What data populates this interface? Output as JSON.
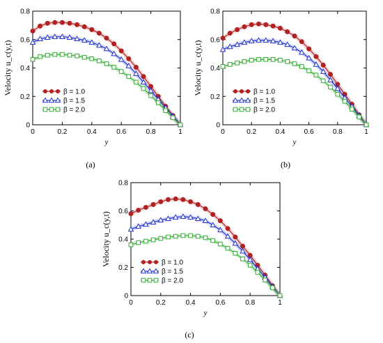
{
  "chart_data": [
    {
      "type": "line",
      "panel_label": "(a)",
      "xlabel": "y",
      "ylabel": "Velocity u_c(y,t)",
      "xlim": [
        0,
        1
      ],
      "ylim": [
        0,
        0.8
      ],
      "x_ticks": [
        "0",
        "0.2",
        "0.4",
        "0.6",
        "0.8",
        "1"
      ],
      "y_ticks": [
        "0",
        "0.2",
        "0.4",
        "0.6",
        "0.8"
      ],
      "legend_position": "lower-left",
      "x": [
        0,
        0.05,
        0.1,
        0.15,
        0.2,
        0.25,
        0.3,
        0.35,
        0.4,
        0.45,
        0.5,
        0.55,
        0.6,
        0.65,
        0.7,
        0.75,
        0.8,
        0.85,
        0.9,
        0.95,
        1.0
      ],
      "series": [
        {
          "name": "β = 1.0",
          "color": "#b22222",
          "marker": "filled-circle",
          "values": [
            0.66,
            0.695,
            0.715,
            0.72,
            0.72,
            0.715,
            0.705,
            0.69,
            0.67,
            0.645,
            0.61,
            0.57,
            0.52,
            0.465,
            0.405,
            0.34,
            0.27,
            0.2,
            0.13,
            0.065,
            0.0
          ]
        },
        {
          "name": "β = 1.5",
          "color": "#2233cc",
          "marker": "open-triangle",
          "values": [
            0.58,
            0.605,
            0.615,
            0.62,
            0.62,
            0.615,
            0.605,
            0.595,
            0.58,
            0.56,
            0.535,
            0.5,
            0.46,
            0.415,
            0.36,
            0.3,
            0.24,
            0.18,
            0.12,
            0.06,
            0.0
          ]
        },
        {
          "name": "β = 2.0",
          "color": "#33aa33",
          "marker": "open-square",
          "values": [
            0.46,
            0.48,
            0.49,
            0.495,
            0.495,
            0.49,
            0.485,
            0.475,
            0.465,
            0.45,
            0.43,
            0.405,
            0.375,
            0.34,
            0.3,
            0.255,
            0.205,
            0.155,
            0.1,
            0.05,
            0.0
          ]
        }
      ]
    },
    {
      "type": "line",
      "panel_label": "(b)",
      "xlabel": "y",
      "ylabel": "Velocity u_c(y,t)",
      "xlim": [
        0,
        1
      ],
      "ylim": [
        0,
        0.8
      ],
      "x_ticks": [
        "0",
        "0.2",
        "0.4",
        "0.6",
        "0.8",
        "1"
      ],
      "y_ticks": [
        "0",
        "0.2",
        "0.4",
        "0.6",
        "0.8"
      ],
      "legend_position": "lower-left",
      "x": [
        0,
        0.05,
        0.1,
        0.15,
        0.2,
        0.25,
        0.3,
        0.35,
        0.4,
        0.45,
        0.5,
        0.55,
        0.6,
        0.65,
        0.7,
        0.75,
        0.8,
        0.85,
        0.9,
        0.95,
        1.0
      ],
      "series": [
        {
          "name": "β = 1.0",
          "color": "#b22222",
          "marker": "filled-circle",
          "values": [
            0.61,
            0.645,
            0.67,
            0.69,
            0.705,
            0.71,
            0.705,
            0.695,
            0.68,
            0.655,
            0.625,
            0.585,
            0.535,
            0.48,
            0.42,
            0.355,
            0.285,
            0.215,
            0.145,
            0.07,
            0.0
          ]
        },
        {
          "name": "β = 1.5",
          "color": "#2233cc",
          "marker": "open-triangle",
          "values": [
            0.53,
            0.55,
            0.565,
            0.58,
            0.59,
            0.595,
            0.595,
            0.59,
            0.58,
            0.565,
            0.54,
            0.51,
            0.47,
            0.425,
            0.375,
            0.315,
            0.255,
            0.19,
            0.13,
            0.065,
            0.0
          ]
        },
        {
          "name": "β = 2.0",
          "color": "#33aa33",
          "marker": "open-square",
          "values": [
            0.41,
            0.425,
            0.435,
            0.445,
            0.455,
            0.46,
            0.46,
            0.46,
            0.455,
            0.445,
            0.43,
            0.41,
            0.38,
            0.35,
            0.31,
            0.265,
            0.215,
            0.165,
            0.11,
            0.055,
            0.0
          ]
        }
      ]
    },
    {
      "type": "line",
      "panel_label": "(c)",
      "xlabel": "y",
      "ylabel": "Velocity u_c(y,t)",
      "xlim": [
        0,
        1
      ],
      "ylim": [
        0,
        0.8
      ],
      "x_ticks": [
        "0",
        "0.2",
        "0.4",
        "0.6",
        "0.8",
        "1"
      ],
      "y_ticks": [
        "0",
        "0.2",
        "0.4",
        "0.6",
        "0.8"
      ],
      "legend_position": "lower-left",
      "x": [
        0,
        0.05,
        0.1,
        0.15,
        0.2,
        0.25,
        0.3,
        0.35,
        0.4,
        0.45,
        0.5,
        0.55,
        0.6,
        0.65,
        0.7,
        0.75,
        0.8,
        0.85,
        0.9,
        0.95,
        1.0
      ],
      "series": [
        {
          "name": "β = 1.0",
          "color": "#b22222",
          "marker": "filled-circle",
          "values": [
            0.58,
            0.605,
            0.625,
            0.645,
            0.665,
            0.68,
            0.685,
            0.68,
            0.665,
            0.645,
            0.615,
            0.575,
            0.53,
            0.475,
            0.415,
            0.35,
            0.285,
            0.215,
            0.145,
            0.07,
            0.0
          ]
        },
        {
          "name": "β = 1.5",
          "color": "#2233cc",
          "marker": "open-triangle",
          "values": [
            0.47,
            0.49,
            0.505,
            0.52,
            0.535,
            0.545,
            0.555,
            0.56,
            0.555,
            0.545,
            0.53,
            0.5,
            0.465,
            0.42,
            0.37,
            0.315,
            0.255,
            0.19,
            0.13,
            0.065,
            0.0
          ]
        },
        {
          "name": "β = 2.0",
          "color": "#33aa33",
          "marker": "open-square",
          "values": [
            0.36,
            0.375,
            0.385,
            0.395,
            0.405,
            0.415,
            0.42,
            0.425,
            0.425,
            0.42,
            0.41,
            0.39,
            0.365,
            0.335,
            0.3,
            0.26,
            0.215,
            0.165,
            0.11,
            0.055,
            0.0
          ]
        }
      ]
    }
  ]
}
